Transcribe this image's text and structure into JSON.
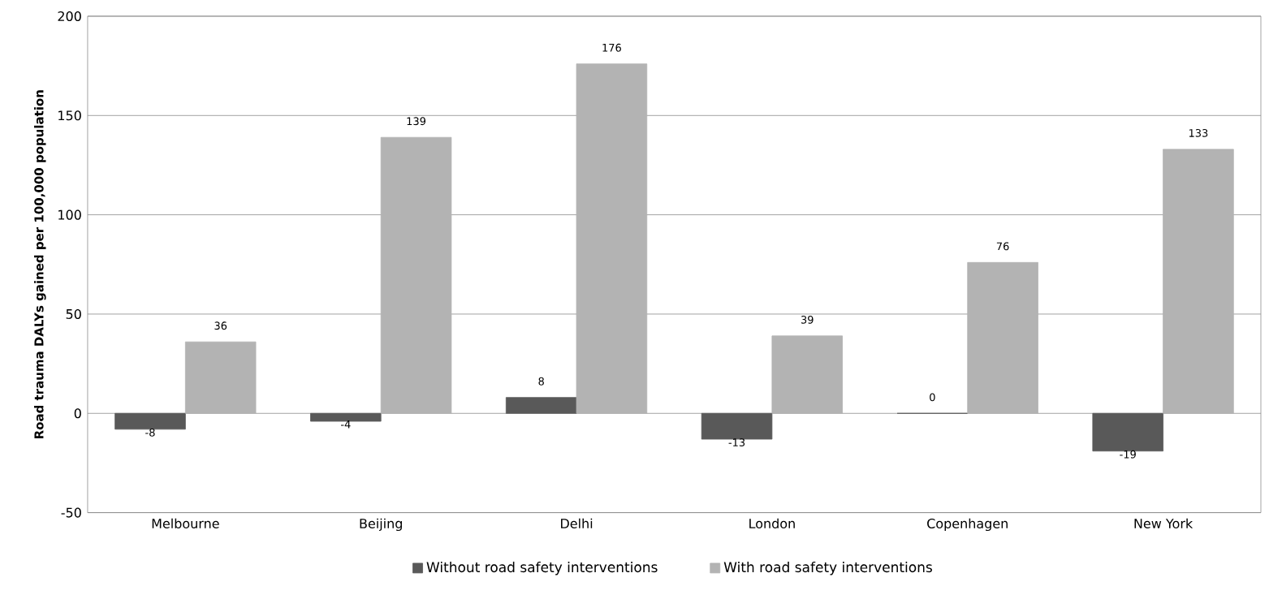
{
  "chart_data": {
    "type": "bar",
    "ylabel": "Road trauma DALYs gained per 100,000 population",
    "categories": [
      "Melbourne",
      "Beijing",
      "Delhi",
      "London",
      "Copenhagen",
      "New York"
    ],
    "series": [
      {
        "name": "Without road safety interventions",
        "color": "#595959",
        "values": [
          -8,
          -4,
          8,
          -13,
          0,
          -19
        ]
      },
      {
        "name": "With road safety interventions",
        "color": "#b3b3b3",
        "values": [
          36,
          139,
          176,
          39,
          76,
          133
        ]
      }
    ],
    "ylim": [
      -50,
      200
    ],
    "yticks": [
      -50,
      0,
      50,
      100,
      150,
      200
    ],
    "grid": "y",
    "legend": "bottom",
    "data_labels": true
  }
}
